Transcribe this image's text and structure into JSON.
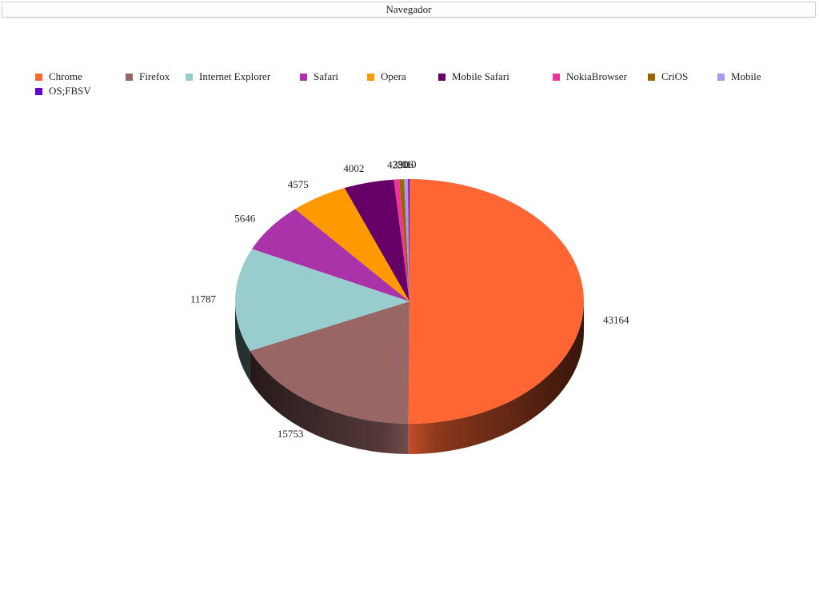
{
  "header": {
    "title": "Navegador"
  },
  "chart_data": {
    "type": "pie",
    "title": "Navegador",
    "legend_position": "top",
    "slices": [
      {
        "label": "Chrome",
        "value": 43164,
        "color": "#ff6633"
      },
      {
        "label": "Firefox",
        "value": 15753,
        "color": "#996666"
      },
      {
        "label": "Internet Explorer",
        "value": 11787,
        "color": "#99cccc"
      },
      {
        "label": "Safari",
        "value": 5646,
        "color": "#aa33aa"
      },
      {
        "label": "Opera",
        "value": 4575,
        "color": "#ff9900"
      },
      {
        "label": "Mobile Safari",
        "value": 4002,
        "color": "#660066"
      },
      {
        "label": "NokiaBrowser",
        "value": 423,
        "color": "#ee3399"
      },
      {
        "label": "CriOS",
        "value": 390,
        "color": "#996600"
      },
      {
        "label": "Mobile",
        "value": 316,
        "color": "#aa99ee"
      },
      {
        "label": "OS;FBSV",
        "value": 110,
        "color": "#6600cc"
      }
    ]
  }
}
